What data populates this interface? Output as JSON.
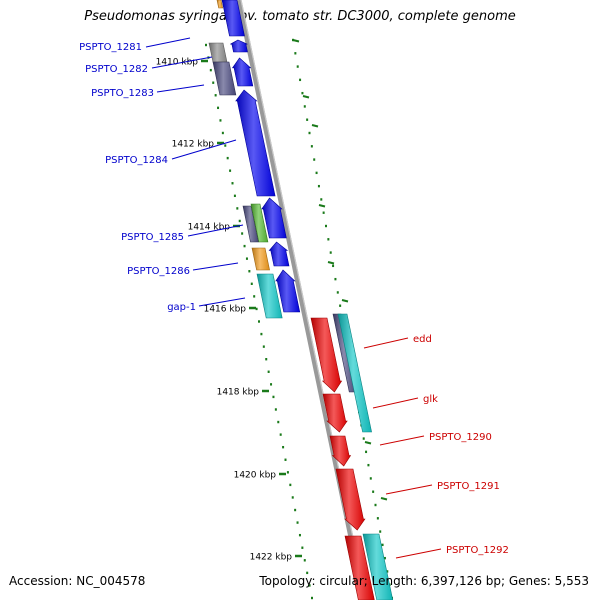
{
  "title": "Pseudomonas syringae pv. tomato str. DC3000, complete genome",
  "footer": {
    "accession": "Accession: NC_004578",
    "summary": "Topology: circular; Length: 6,397,126 bp; Genes: 5,553"
  },
  "colors": {
    "forward_label": "#0000cc",
    "reverse_label": "#cc0000",
    "ticks": "#1a7a1a",
    "backbone": "#999999",
    "blue": "#0000ee",
    "red": "#ee0000",
    "cyan": "#11c8c8",
    "slate": "#4a4a80",
    "grey": "#8c8c8c",
    "orange": "#f39a1a",
    "green": "#55bb33"
  },
  "ruler_ticks": [
    "1410 kbp",
    "1412 kbp",
    "1414 kbp",
    "1416 kbp",
    "1418 kbp",
    "1420 kbp",
    "1422 kbp"
  ],
  "forward_genes": [
    {
      "name": "PSPTO_1281",
      "color": "blue"
    },
    {
      "name": "PSPTO_1282",
      "color": "blue"
    },
    {
      "name": "PSPTO_1283",
      "color": "blue"
    },
    {
      "name": "PSPTO_1284",
      "color": "blue"
    },
    {
      "name": "PSPTO_1285",
      "color": "blue"
    },
    {
      "name": "PSPTO_1286",
      "color": "blue"
    },
    {
      "name": "gap-1",
      "color": "blue"
    }
  ],
  "reverse_genes": [
    {
      "name": "edd",
      "color": "red"
    },
    {
      "name": "glk",
      "color": "red"
    },
    {
      "name": "PSPTO_1290",
      "color": "red"
    },
    {
      "name": "PSPTO_1291",
      "color": "red"
    },
    {
      "name": "PSPTO_1292",
      "color": "red"
    }
  ]
}
